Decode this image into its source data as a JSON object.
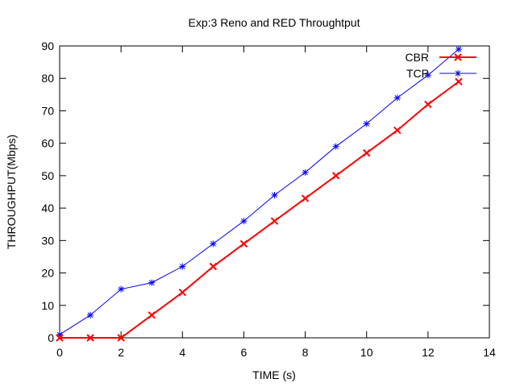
{
  "chart_data": {
    "type": "line",
    "title": "Exp:3 Reno and RED Throughtput",
    "xlabel": "TIME (s)",
    "ylabel": "THROUGHPUT(Mbps)",
    "xlim": [
      0,
      14
    ],
    "ylim": [
      0,
      90
    ],
    "xticks": [
      0,
      2,
      4,
      6,
      8,
      10,
      12,
      14
    ],
    "yticks": [
      0,
      10,
      20,
      30,
      40,
      50,
      60,
      70,
      80,
      90
    ],
    "grid": false,
    "legend_position": "top-right",
    "x": [
      0,
      1,
      2,
      3,
      4,
      5,
      6,
      7,
      8,
      9,
      10,
      11,
      12,
      13
    ],
    "series": [
      {
        "name": "CBR",
        "color": "#ff0000",
        "marker": "x",
        "values": [
          0,
          0,
          0,
          7,
          14,
          22,
          29,
          36,
          43,
          50,
          57,
          64,
          72,
          79
        ]
      },
      {
        "name": "TCP",
        "color": "#0000ff",
        "marker": "asterisk",
        "values": [
          1,
          7,
          15,
          17,
          22,
          29,
          36,
          44,
          51,
          59,
          66,
          74,
          81,
          89
        ]
      }
    ]
  }
}
